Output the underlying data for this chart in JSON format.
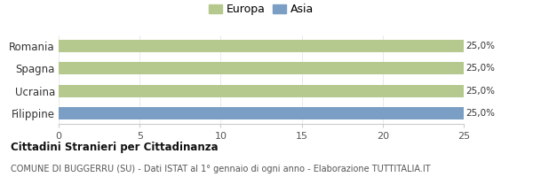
{
  "categories": [
    "Romania",
    "Spagna",
    "Ucraina",
    "Filippine"
  ],
  "values": [
    25,
    25,
    25,
    25
  ],
  "colors": [
    "#b5c98e",
    "#b5c98e",
    "#b5c98e",
    "#7b9fc4"
  ],
  "bar_labels": [
    "25,0%",
    "25,0%",
    "25,0%",
    "25,0%"
  ],
  "xlim": [
    0,
    25
  ],
  "xticks": [
    0,
    5,
    10,
    15,
    20,
    25
  ],
  "legend_entries": [
    {
      "label": "Europa",
      "color": "#b5c98e"
    },
    {
      "label": "Asia",
      "color": "#7b9fc4"
    }
  ],
  "title_bold": "Cittadini Stranieri per Cittadinanza",
  "title_sub": "COMUNE DI BUGGERRU (SU) - Dati ISTAT al 1° gennaio di ogni anno - Elaborazione TUTTITALIA.IT",
  "background_color": "#ffffff",
  "bar_label_fontsize": 7.5,
  "tick_fontsize": 8,
  "ylabel_fontsize": 8.5
}
